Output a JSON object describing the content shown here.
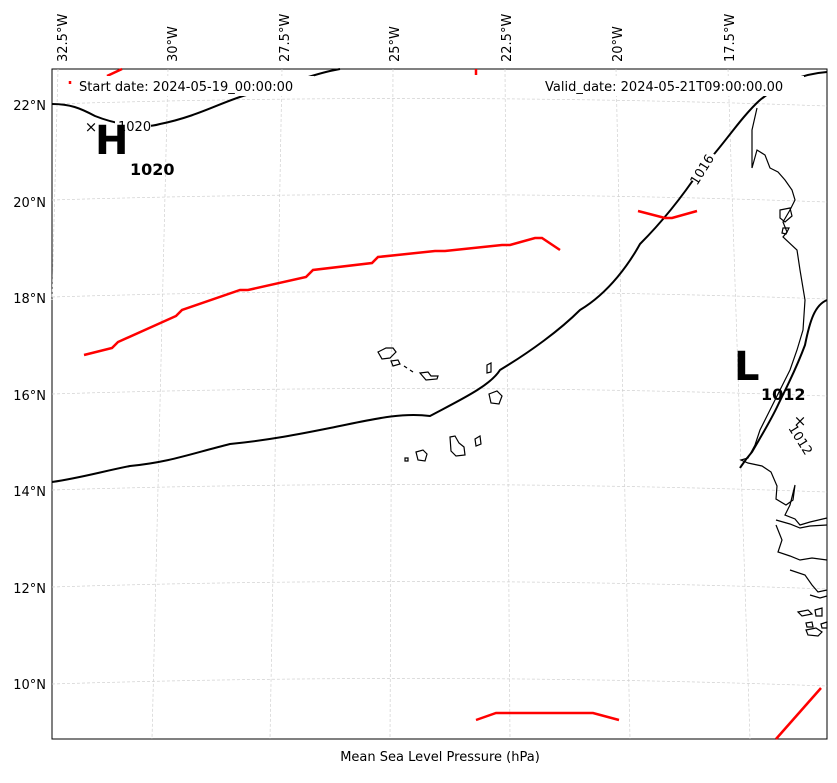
{
  "header": {
    "start_date": "Start date: 2024-05-19_00:00:00",
    "valid_date": "Valid_date: 2024-05-21T09:00:00.00"
  },
  "xlabel": "Mean Sea Level Pressure (hPa)",
  "lon_ticks": [
    "32.5°W",
    "30°W",
    "27.5°W",
    "25°W",
    "22.5°W",
    "20°W",
    "17.5°W"
  ],
  "lat_ticks": [
    "22°N",
    "20°N",
    "18°N",
    "16°N",
    "14°N",
    "12°N",
    "10°N"
  ],
  "pressure_centers": [
    {
      "symbol": "H",
      "value": "1020"
    },
    {
      "symbol": "L",
      "value": "1012"
    }
  ],
  "isobar_labels": [
    "1020",
    "1016",
    "1012"
  ],
  "colors": {
    "isobar": "#000000",
    "front": "#ff0000",
    "coast": "#000000",
    "grid": "#cccccc"
  },
  "icons": {
    "high_marker": "x-marker-icon",
    "low_marker": "x-marker-icon"
  }
}
